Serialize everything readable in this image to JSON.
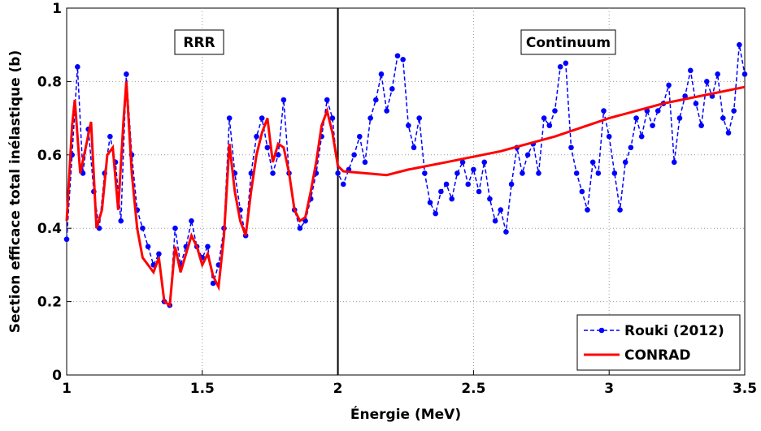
{
  "chart_data": {
    "type": "line",
    "xlabel": "Énergie (MeV)",
    "ylabel": "Section efficace total inélastique (b)",
    "annotations": [
      "RRR",
      "Continuum"
    ],
    "xlim": [
      1,
      3.5
    ],
    "xticks": [
      1,
      1.5,
      2,
      2.5,
      3,
      3.5
    ],
    "ylim": [
      0,
      1
    ],
    "yticks": [
      0,
      0.2,
      0.4,
      0.6,
      0.8,
      1
    ],
    "grid": true,
    "legend": "lower right",
    "series": [
      {
        "name": "Rouki (2012)",
        "color": "#0000ff",
        "style": "dashed-markers",
        "x": [
          1.0,
          1.02,
          1.04,
          1.06,
          1.08,
          1.1,
          1.12,
          1.14,
          1.16,
          1.18,
          1.2,
          1.22,
          1.24,
          1.26,
          1.28,
          1.3,
          1.32,
          1.34,
          1.36,
          1.38,
          1.4,
          1.42,
          1.44,
          1.46,
          1.48,
          1.5,
          1.52,
          1.54,
          1.56,
          1.58,
          1.6,
          1.62,
          1.64,
          1.66,
          1.68,
          1.7,
          1.72,
          1.74,
          1.76,
          1.78,
          1.8,
          1.82,
          1.84,
          1.86,
          1.88,
          1.9,
          1.92,
          1.94,
          1.96,
          1.98,
          2.0,
          2.02,
          2.04,
          2.06,
          2.08,
          2.1,
          2.12,
          2.14,
          2.16,
          2.18,
          2.2,
          2.22,
          2.24,
          2.26,
          2.28,
          2.3,
          2.32,
          2.34,
          2.36,
          2.38,
          2.4,
          2.42,
          2.44,
          2.46,
          2.48,
          2.5,
          2.52,
          2.54,
          2.56,
          2.58,
          2.6,
          2.62,
          2.64,
          2.66,
          2.68,
          2.7,
          2.72,
          2.74,
          2.76,
          2.78,
          2.8,
          2.82,
          2.84,
          2.86,
          2.88,
          2.9,
          2.92,
          2.94,
          2.96,
          2.98,
          3.0,
          3.02,
          3.04,
          3.06,
          3.08,
          3.1,
          3.12,
          3.14,
          3.16,
          3.18,
          3.2,
          3.22,
          3.24,
          3.26,
          3.28,
          3.3,
          3.32,
          3.34,
          3.36,
          3.38,
          3.4,
          3.42,
          3.44,
          3.46,
          3.48,
          3.5
        ],
        "values": [
          0.37,
          0.6,
          0.84,
          0.55,
          0.67,
          0.5,
          0.4,
          0.55,
          0.65,
          0.58,
          0.42,
          0.82,
          0.6,
          0.45,
          0.4,
          0.35,
          0.3,
          0.33,
          0.2,
          0.19,
          0.4,
          0.3,
          0.35,
          0.42,
          0.35,
          0.32,
          0.35,
          0.25,
          0.3,
          0.4,
          0.7,
          0.55,
          0.45,
          0.38,
          0.55,
          0.65,
          0.7,
          0.62,
          0.55,
          0.6,
          0.75,
          0.55,
          0.45,
          0.4,
          0.42,
          0.48,
          0.55,
          0.65,
          0.75,
          0.7,
          0.55,
          0.52,
          0.56,
          0.6,
          0.65,
          0.58,
          0.7,
          0.75,
          0.82,
          0.72,
          0.78,
          0.87,
          0.86,
          0.68,
          0.62,
          0.7,
          0.55,
          0.47,
          0.44,
          0.5,
          0.52,
          0.48,
          0.55,
          0.58,
          0.52,
          0.56,
          0.5,
          0.58,
          0.48,
          0.42,
          0.45,
          0.39,
          0.52,
          0.62,
          0.55,
          0.6,
          0.63,
          0.55,
          0.7,
          0.68,
          0.72,
          0.84,
          0.85,
          0.62,
          0.55,
          0.5,
          0.45,
          0.58,
          0.55,
          0.72,
          0.65,
          0.55,
          0.45,
          0.58,
          0.62,
          0.7,
          0.65,
          0.72,
          0.68,
          0.72,
          0.74,
          0.79,
          0.58,
          0.7,
          0.76,
          0.83,
          0.74,
          0.68,
          0.8,
          0.76,
          0.82,
          0.7,
          0.66,
          0.72,
          0.9,
          0.82
        ]
      },
      {
        "name": "CONRAD",
        "color": "#ff0000",
        "style": "solid",
        "x": [
          1.0,
          1.02,
          1.03,
          1.05,
          1.07,
          1.09,
          1.11,
          1.13,
          1.15,
          1.17,
          1.19,
          1.21,
          1.22,
          1.24,
          1.26,
          1.28,
          1.3,
          1.32,
          1.34,
          1.36,
          1.38,
          1.4,
          1.42,
          1.44,
          1.46,
          1.48,
          1.5,
          1.52,
          1.54,
          1.56,
          1.58,
          1.6,
          1.62,
          1.64,
          1.66,
          1.68,
          1.7,
          1.72,
          1.74,
          1.76,
          1.78,
          1.8,
          1.82,
          1.84,
          1.86,
          1.88,
          1.9,
          1.92,
          1.94,
          1.96,
          1.98,
          2.0,
          2.02,
          2.1,
          2.18,
          2.26,
          2.4,
          2.6,
          2.8,
          3.0,
          3.2,
          3.4,
          3.5
        ],
        "values": [
          0.42,
          0.68,
          0.75,
          0.55,
          0.62,
          0.69,
          0.4,
          0.45,
          0.6,
          0.62,
          0.45,
          0.7,
          0.8,
          0.55,
          0.4,
          0.32,
          0.3,
          0.28,
          0.32,
          0.2,
          0.19,
          0.35,
          0.28,
          0.33,
          0.38,
          0.35,
          0.3,
          0.33,
          0.27,
          0.24,
          0.38,
          0.63,
          0.5,
          0.42,
          0.38,
          0.5,
          0.6,
          0.66,
          0.7,
          0.58,
          0.63,
          0.62,
          0.55,
          0.45,
          0.42,
          0.43,
          0.5,
          0.58,
          0.68,
          0.72,
          0.66,
          0.57,
          0.555,
          0.55,
          0.545,
          0.56,
          0.58,
          0.61,
          0.65,
          0.7,
          0.74,
          0.77,
          0.785
        ]
      }
    ]
  }
}
